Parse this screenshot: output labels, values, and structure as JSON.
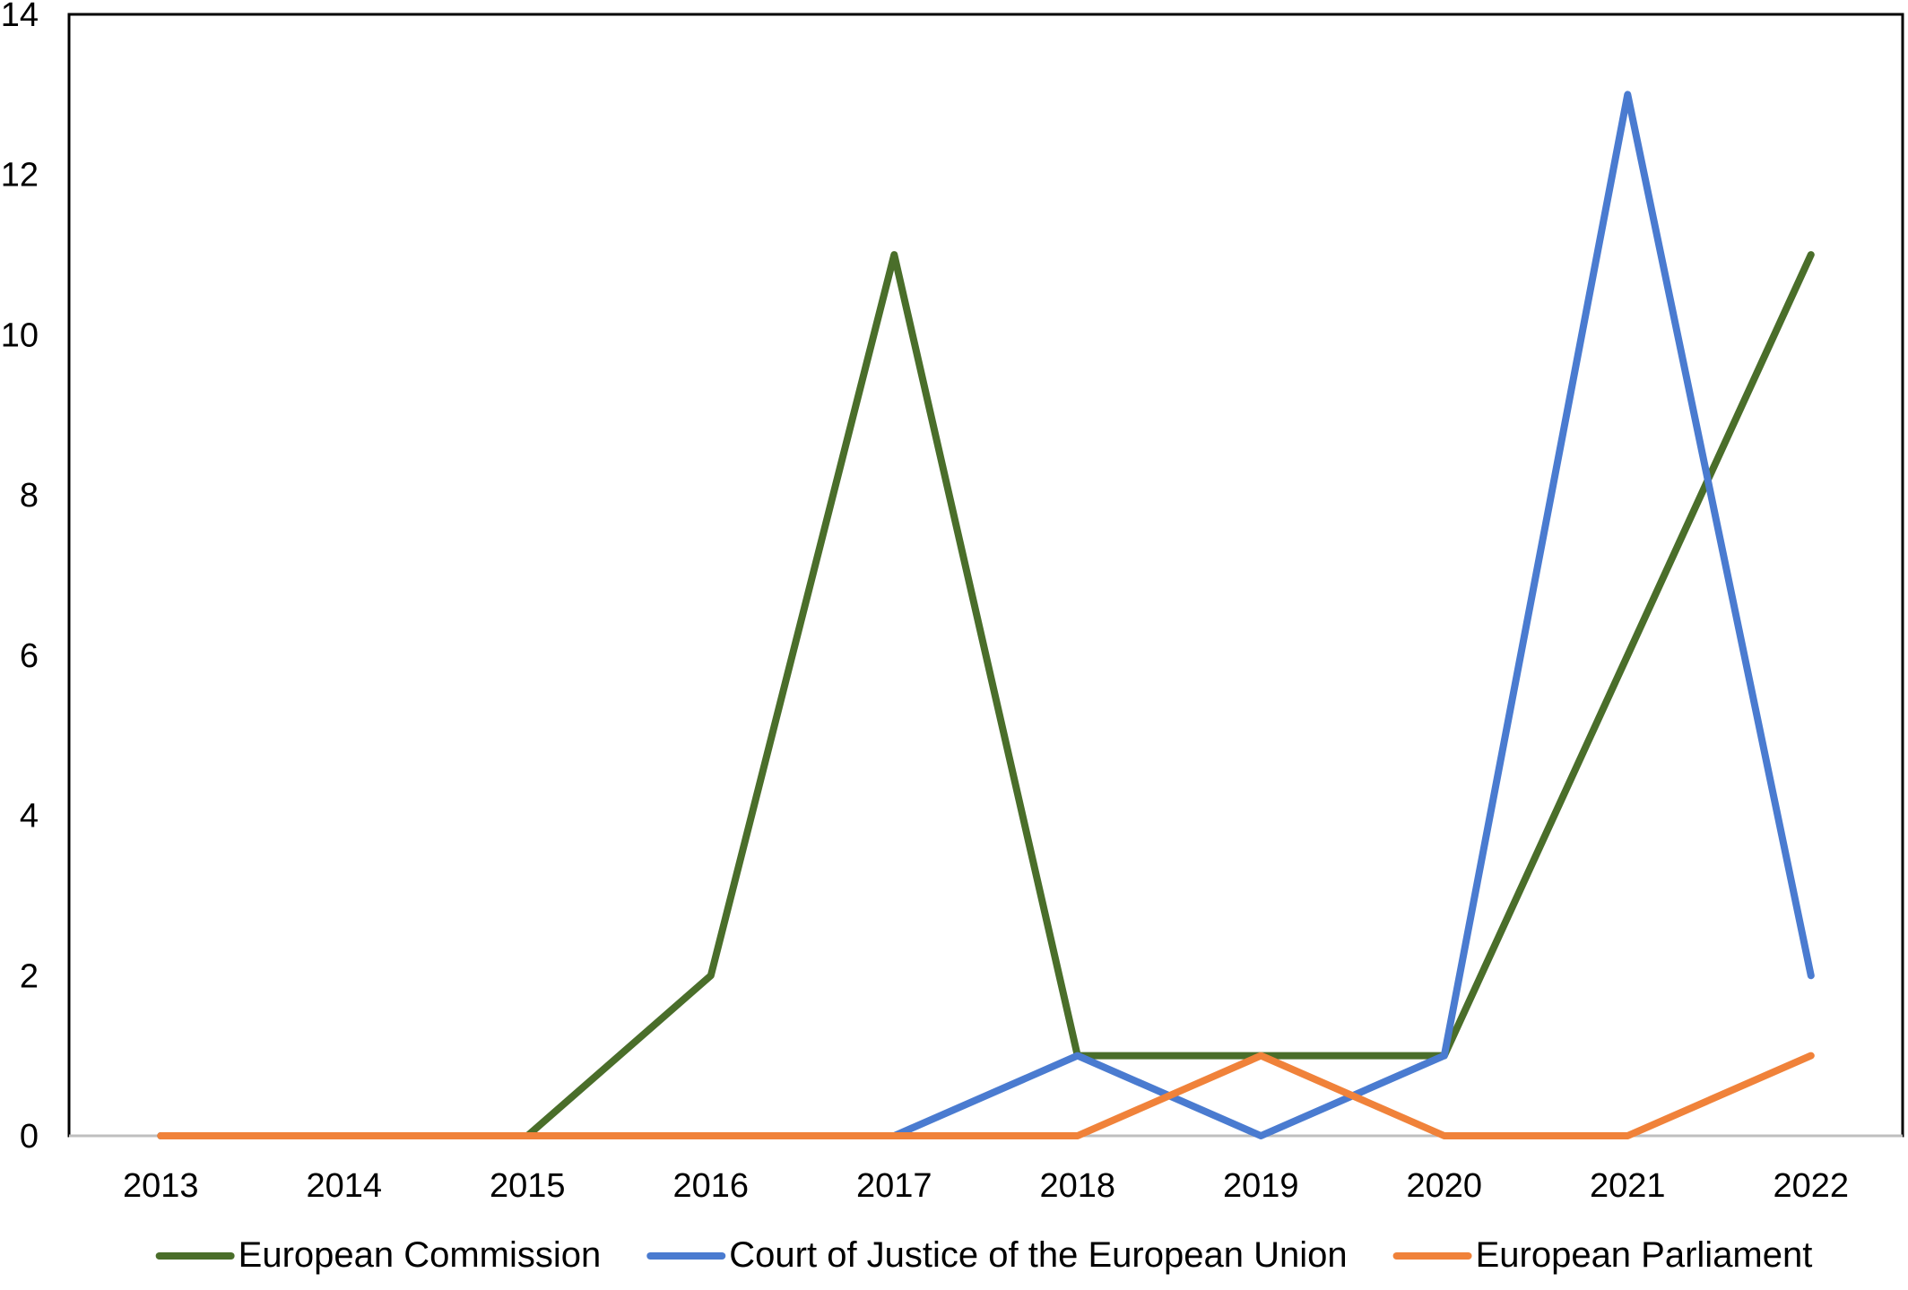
{
  "chart_data": {
    "type": "line",
    "title": "",
    "xlabel": "",
    "ylabel": "",
    "categories": [
      "2013",
      "2014",
      "2015",
      "2016",
      "2017",
      "2018",
      "2019",
      "2020",
      "2021",
      "2022"
    ],
    "ylim": [
      0,
      14
    ],
    "yticks": [
      "0",
      "2",
      "4",
      "6",
      "8",
      "10",
      "12",
      "14"
    ],
    "grid": false,
    "legend_position": "bottom",
    "series": [
      {
        "name": "European Commission",
        "color": "#4a6e2a",
        "values": [
          0,
          0,
          0,
          2,
          11,
          1,
          1,
          1,
          6,
          11
        ]
      },
      {
        "name": "Court of Justice of the European Union",
        "color": "#4a7bd0",
        "values": [
          0,
          0,
          0,
          0,
          0,
          1,
          0,
          1,
          13,
          2
        ]
      },
      {
        "name": "European Parliament",
        "color": "#f0823a",
        "values": [
          0,
          0,
          0,
          0,
          0,
          0,
          1,
          0,
          0,
          1
        ]
      }
    ]
  }
}
